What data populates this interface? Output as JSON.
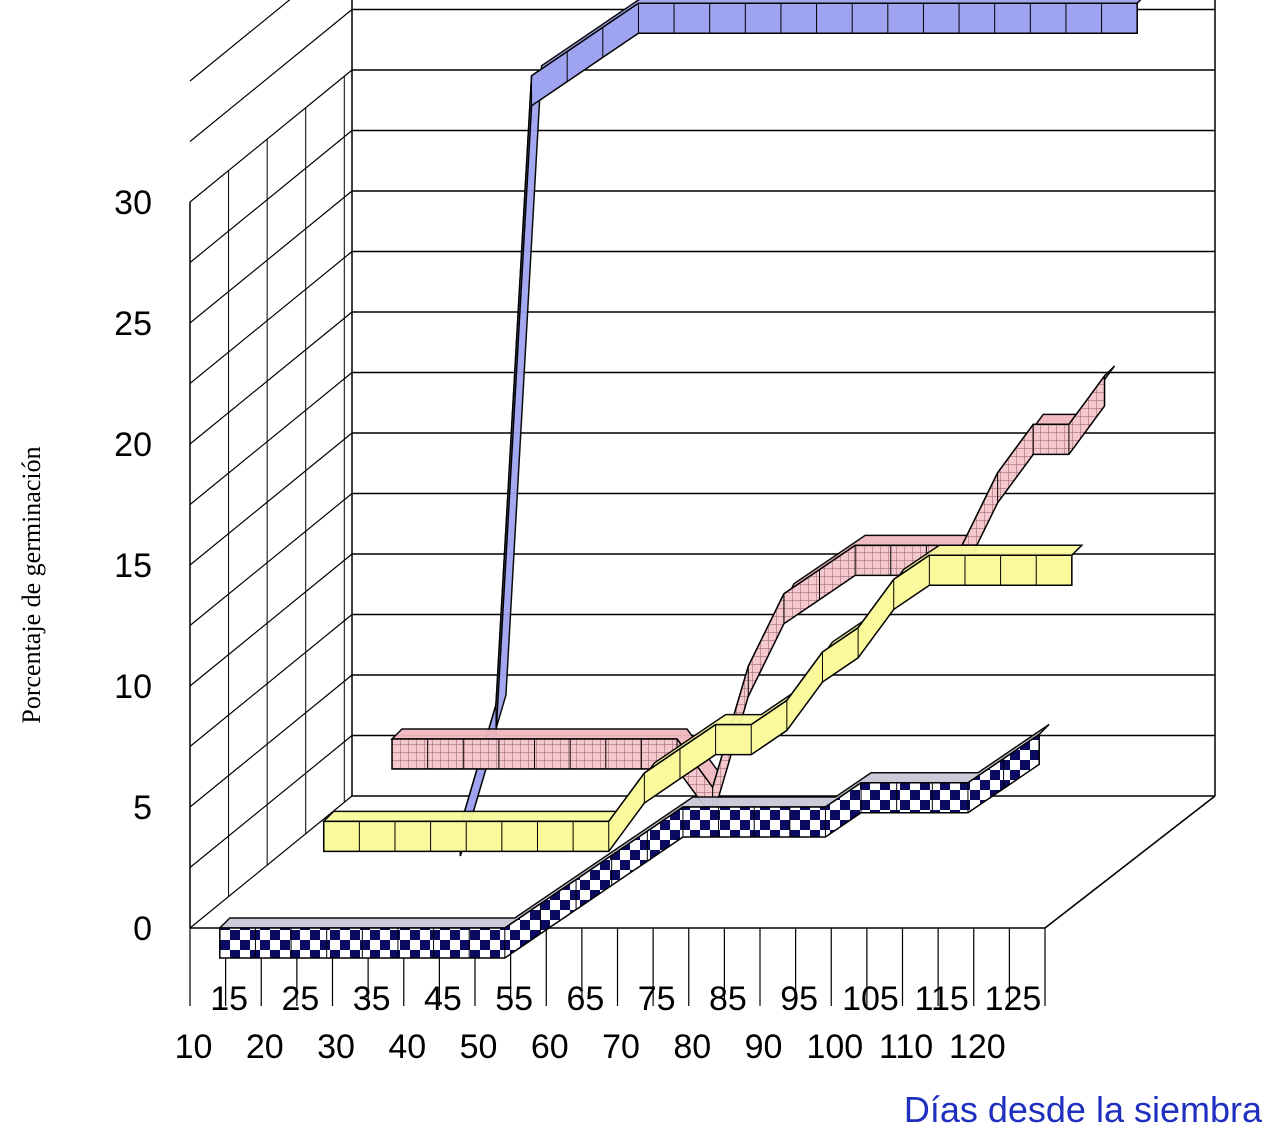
{
  "chart_data": {
    "type": "line",
    "style": "3d-ribbon",
    "xlabel": "Días desde la siembra",
    "ylabel": "Porcentaje de germinación",
    "x": [
      10,
      15,
      20,
      25,
      30,
      35,
      40,
      45,
      50,
      55,
      60,
      65,
      70,
      75,
      80,
      85,
      90,
      95,
      100,
      105,
      110,
      115,
      120,
      125
    ],
    "x_tick_labels_upper": [
      "15",
      "25",
      "35",
      "45",
      "55",
      "65",
      "75",
      "85",
      "95",
      "105",
      "115",
      "125"
    ],
    "x_tick_labels_lower": [
      "10",
      "20",
      "30",
      "40",
      "50",
      "60",
      "70",
      "80",
      "90",
      "100",
      "110",
      "120"
    ],
    "y_ticks": [
      0,
      5,
      10,
      15,
      20,
      25,
      30
    ],
    "ylim": [
      0,
      35
    ],
    "grid": true,
    "series": [
      {
        "color": "#9fa4f0",
        "pattern": "solid",
        "values": [
          null,
          null,
          null,
          null,
          0,
          5,
          31,
          32,
          33,
          34,
          34,
          34,
          34,
          34,
          34,
          34,
          34,
          34,
          34,
          34,
          34,
          34,
          34,
          34
        ]
      },
      {
        "color": "#f0b8c0",
        "pattern": "grid",
        "values": [
          null,
          null,
          null,
          5,
          5,
          5,
          5,
          5,
          5,
          5,
          5,
          5,
          3,
          8,
          11,
          12,
          13,
          13,
          13,
          13,
          16,
          18,
          18,
          20
        ]
      },
      {
        "color": "#fafa9c",
        "pattern": "solid",
        "values": [
          null,
          null,
          3,
          3,
          3,
          3,
          3,
          3,
          3,
          3,
          3,
          5,
          6,
          7,
          7,
          8,
          10,
          11,
          13,
          14,
          14,
          14,
          14,
          14
        ]
      },
      {
        "color": "#0a0a60",
        "pattern": "checker",
        "values": [
          0,
          0,
          0,
          0,
          0,
          0,
          0,
          0,
          0,
          1,
          2,
          3,
          4,
          5,
          5,
          5,
          5,
          5,
          6,
          6,
          6,
          6,
          7,
          8
        ]
      }
    ]
  }
}
